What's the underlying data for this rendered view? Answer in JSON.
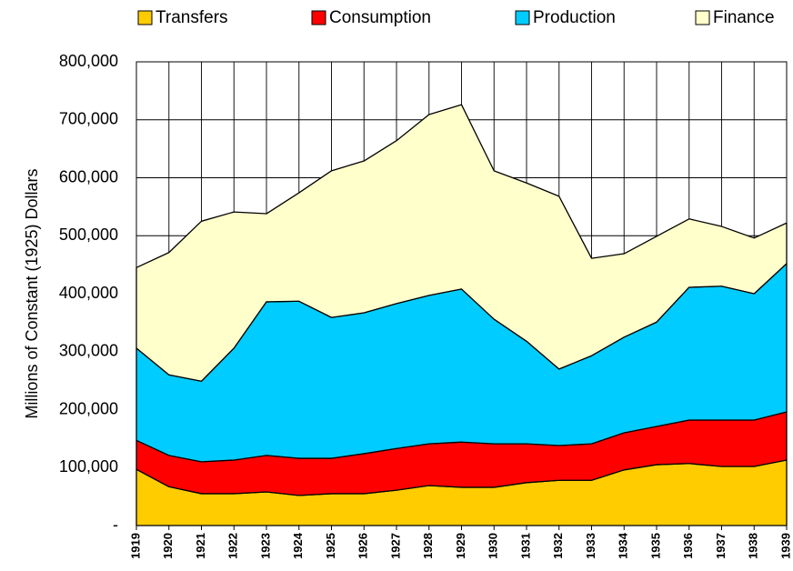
{
  "chart_data": {
    "type": "stacked_area",
    "y_label": "Millions of Constant (1925) Dollars",
    "categories": [
      "1919",
      "1920",
      "1921",
      "1922",
      "1923",
      "1924",
      "1925",
      "1926",
      "1927",
      "1928",
      "1929",
      "1930",
      "1931",
      "1932",
      "1933",
      "1934",
      "1935",
      "1936",
      "1937",
      "1938",
      "1939"
    ],
    "series": [
      {
        "name": "Transfers",
        "color": "#ffcc00",
        "values": [
          97000,
          67000,
          55000,
          55000,
          58000,
          52000,
          55000,
          55000,
          61000,
          69000,
          66000,
          66000,
          74000,
          78000,
          78000,
          96000,
          105000,
          107000,
          102000,
          102000,
          113000
        ]
      },
      {
        "name": "Consumption",
        "color": "#ff0000",
        "values": [
          50000,
          54000,
          55000,
          58000,
          63000,
          64000,
          61000,
          69000,
          72000,
          72000,
          78000,
          75000,
          67000,
          60000,
          63000,
          64000,
          66000,
          75000,
          80000,
          80000,
          83000
        ]
      },
      {
        "name": "Production",
        "color": "#00ccff",
        "values": [
          159000,
          139000,
          139000,
          193000,
          265000,
          271000,
          243000,
          243000,
          250000,
          256000,
          264000,
          215000,
          177000,
          132000,
          152000,
          165000,
          180000,
          229000,
          231000,
          218000,
          256000
        ]
      },
      {
        "name": "Finance",
        "color": "#ffffcc",
        "values": [
          139000,
          211000,
          276000,
          235000,
          152000,
          187000,
          253000,
          262000,
          281000,
          312000,
          318000,
          256000,
          273000,
          298000,
          168000,
          144000,
          148000,
          118000,
          103000,
          96000,
          70000
        ]
      }
    ],
    "ylim": [
      0,
      800000
    ],
    "yticks": [
      {
        "value": 0,
        "label": "-"
      },
      {
        "value": 100000,
        "label": "100,000"
      },
      {
        "value": 200000,
        "label": "200,000"
      },
      {
        "value": 300000,
        "label": "300,000"
      },
      {
        "value": 400000,
        "label": "400,000"
      },
      {
        "value": 500000,
        "label": "500,000"
      },
      {
        "value": 600000,
        "label": "600,000"
      },
      {
        "value": 700000,
        "label": "700,000"
      },
      {
        "value": 800000,
        "label": "800,000"
      }
    ],
    "grid": true
  }
}
